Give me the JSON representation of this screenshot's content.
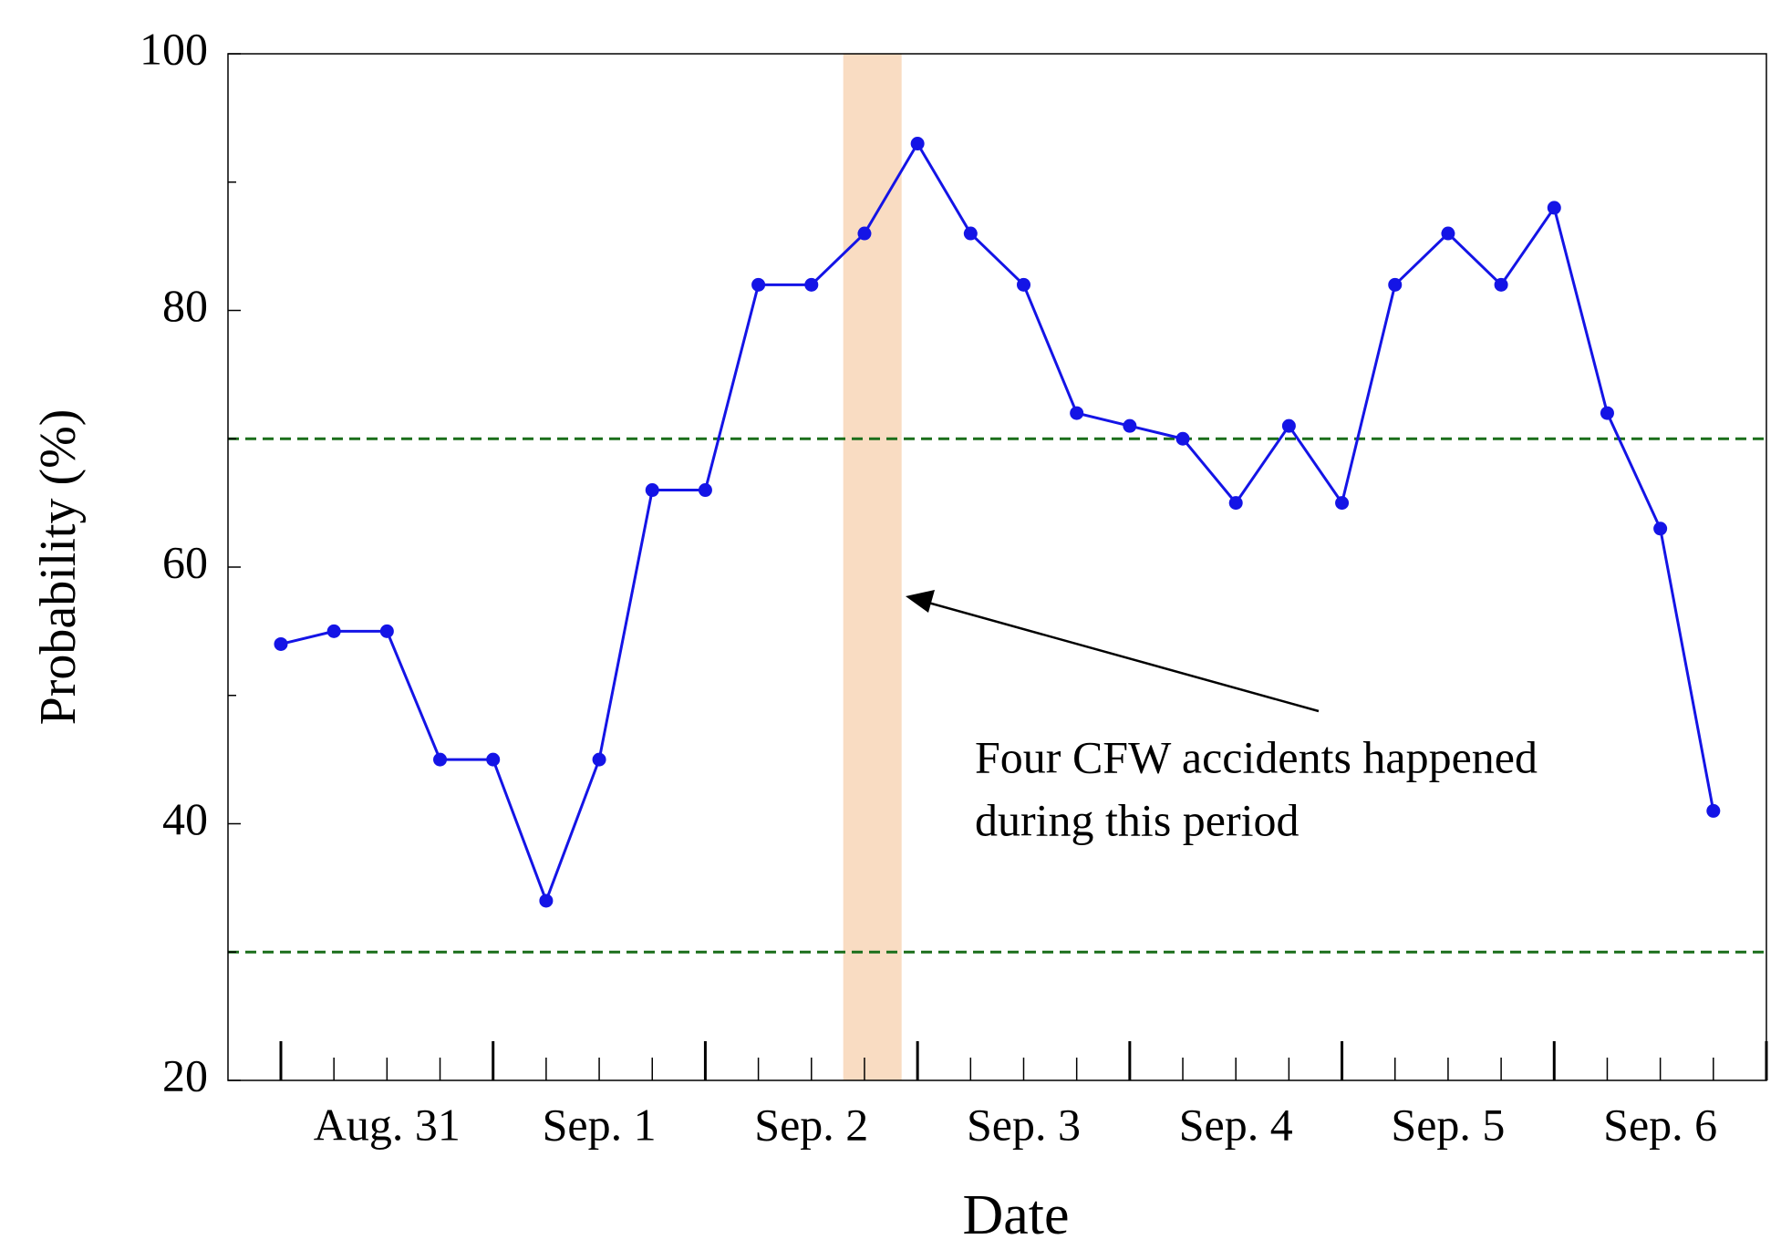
{
  "chart_data": {
    "type": "line",
    "x_label": "Date",
    "y_label": "Probability (%)",
    "categories": [
      null,
      null,
      null,
      null,
      null,
      null,
      null,
      null,
      null,
      null,
      null,
      null,
      null,
      null,
      null,
      null,
      null,
      null,
      null,
      null,
      null,
      null,
      null,
      null,
      null,
      null,
      null,
      null
    ],
    "date_labels": [
      "Aug. 31",
      "Sep. 1",
      "Sep. 2",
      "Sep. 3",
      "Sep. 4",
      "Sep. 5",
      "Sep. 6"
    ],
    "series": [
      {
        "name": "Probability",
        "color": "#1414e6",
        "values": [
          54,
          55,
          55,
          45,
          45,
          34,
          45,
          66,
          66,
          82,
          82,
          86,
          93,
          86,
          82,
          72,
          71,
          70,
          65,
          71,
          65,
          82,
          86,
          82,
          88,
          72,
          63,
          41
        ]
      }
    ],
    "ylim": [
      20,
      100
    ],
    "yticks": [
      20,
      40,
      60,
      80,
      100
    ],
    "yticks_minor": [
      30,
      50,
      70,
      90
    ],
    "thresholds": [
      {
        "value": 70,
        "color": "#1a6e1a"
      },
      {
        "value": 30,
        "color": "#1a6e1a"
      }
    ],
    "highlight": {
      "from": 10.6,
      "to": 11.7,
      "color": "#f9dcc2"
    },
    "annotation": [
      "Four CFW accidents happened",
      "during this period"
    ]
  }
}
